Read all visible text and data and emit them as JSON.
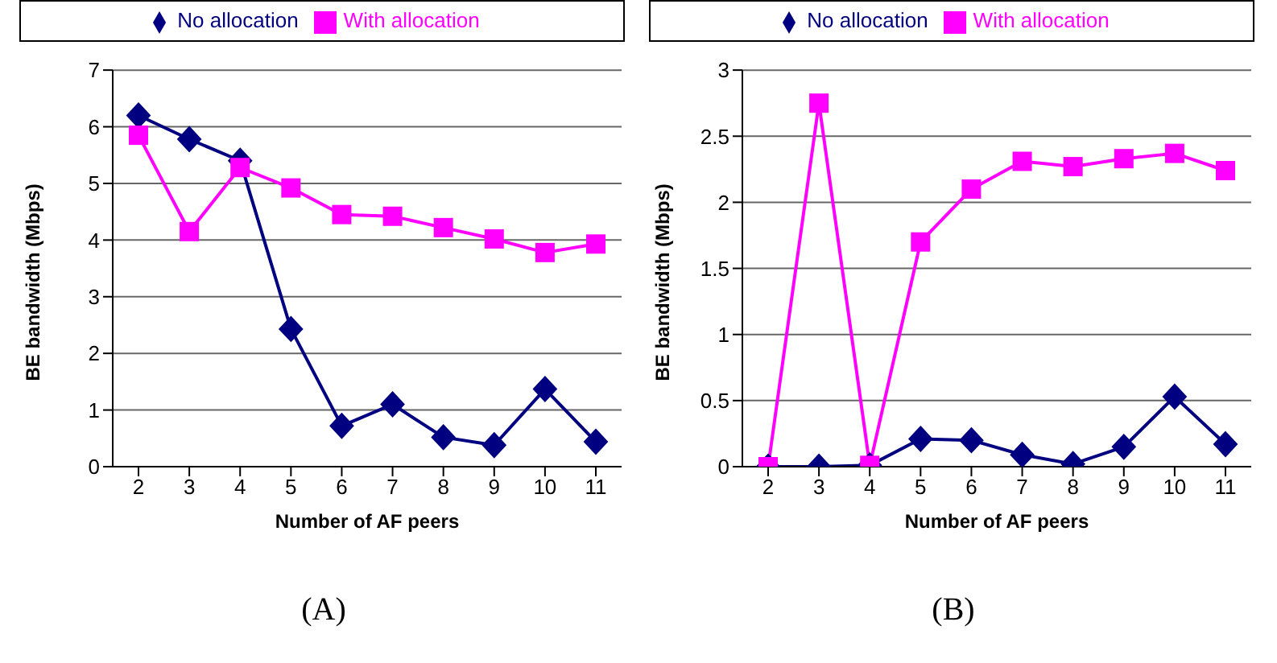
{
  "chart_data": [
    {
      "type": "line",
      "xlabel": "Number of AF peers",
      "ylabel": "BE bandwidth (Mbps)",
      "categories": [
        "2",
        "3",
        "4",
        "5",
        "6",
        "7",
        "8",
        "9",
        "10",
        "11"
      ],
      "series": [
        {
          "name": "No allocation",
          "color": "#000080",
          "marker": "diamond",
          "values": [
            6.2,
            5.78,
            5.4,
            2.43,
            0.72,
            1.1,
            0.52,
            0.38,
            1.37,
            0.44
          ]
        },
        {
          "name": "With allocation",
          "color": "#ff00ff",
          "marker": "square",
          "values": [
            5.85,
            4.15,
            5.28,
            4.92,
            4.45,
            4.42,
            4.22,
            4.02,
            3.78,
            3.93
          ]
        }
      ],
      "ylim": [
        0,
        7
      ],
      "yticks": [
        0,
        1,
        2,
        3,
        4,
        5,
        6,
        7
      ],
      "grid": "y",
      "legend": "top",
      "annotations": [
        "(A)"
      ]
    },
    {
      "type": "line",
      "xlabel": "Number of AF peers",
      "ylabel": "BE bandwidth (Mbps)",
      "categories": [
        "2",
        "3",
        "4",
        "5",
        "6",
        "7",
        "8",
        "9",
        "10",
        "11"
      ],
      "series": [
        {
          "name": "No allocation",
          "color": "#000080",
          "marker": "diamond",
          "values": [
            0,
            0,
            0.01,
            0.21,
            0.2,
            0.09,
            0.02,
            0.15,
            0.53,
            0.17
          ]
        },
        {
          "name": "With allocation",
          "color": "#ff00ff",
          "marker": "square",
          "values": [
            0,
            2.75,
            0.01,
            1.7,
            2.1,
            2.31,
            2.27,
            2.33,
            2.37,
            2.24
          ]
        }
      ],
      "ylim": [
        0,
        3
      ],
      "yticks": [
        0,
        0.5,
        1,
        1.5,
        2,
        2.5,
        3
      ],
      "grid": "y",
      "legend": "top",
      "annotations": [
        "(B)"
      ]
    }
  ]
}
